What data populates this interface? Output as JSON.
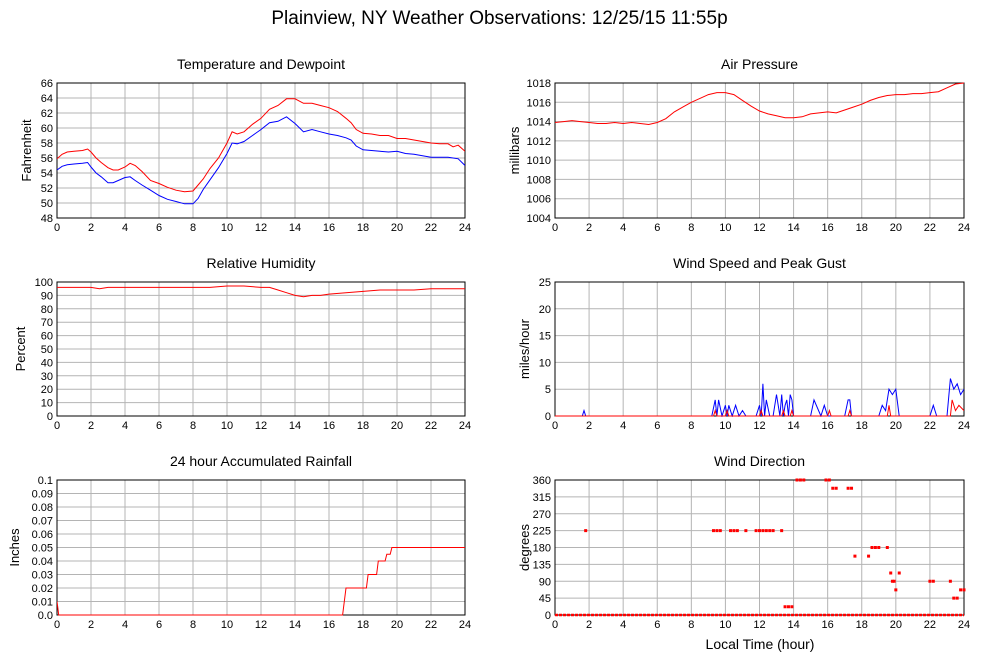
{
  "page": {
    "title": "Plainview, NY Weather Observations: 12/25/15 11:55p",
    "xlabel": "Local Time (hour)"
  },
  "colors": {
    "primary": "#ff0000",
    "secondary": "#0000ff",
    "grid": "#b4b4b4",
    "axis": "#000000"
  },
  "chart_data": [
    {
      "id": "temperature",
      "type": "line",
      "title": "Temperature and Dewpoint",
      "ylabel": "Fahrenheit",
      "xlim": [
        0,
        24
      ],
      "ylim": [
        48,
        66
      ],
      "xticks": [
        0,
        2,
        4,
        6,
        8,
        10,
        12,
        14,
        16,
        18,
        20,
        22,
        24
      ],
      "yticks": [
        48,
        50,
        52,
        54,
        56,
        58,
        60,
        62,
        64,
        66
      ],
      "series": [
        {
          "color": "#ff0000",
          "x": [
            0,
            0.3,
            0.6,
            1,
            1.5,
            1.8,
            2,
            2.3,
            2.6,
            3,
            3.3,
            3.6,
            4,
            4.3,
            4.6,
            5,
            5.5,
            6,
            6.5,
            7,
            7.5,
            8,
            8.3,
            8.6,
            9,
            9.5,
            10,
            10.3,
            10.6,
            11,
            11.5,
            12,
            12.5,
            13,
            13.5,
            14,
            14.5,
            15,
            15.5,
            16,
            16.5,
            17,
            17.3,
            17.6,
            18,
            18.5,
            19,
            19.5,
            20,
            20.5,
            21,
            21.5,
            22,
            22.5,
            23,
            23.3,
            23.6,
            24
          ],
          "y": [
            55.9,
            56.5,
            56.8,
            56.9,
            57.0,
            57.2,
            56.8,
            56.0,
            55.4,
            54.7,
            54.4,
            54.4,
            54.8,
            55.3,
            55.0,
            54.2,
            53.0,
            52.6,
            52.1,
            51.7,
            51.5,
            51.6,
            52.4,
            53.2,
            54.6,
            56.0,
            58.0,
            59.5,
            59.2,
            59.5,
            60.5,
            61.3,
            62.5,
            63.0,
            63.9,
            63.9,
            63.3,
            63.3,
            63.0,
            62.7,
            62.2,
            61.3,
            60.7,
            59.8,
            59.3,
            59.2,
            59.0,
            59.0,
            58.6,
            58.6,
            58.4,
            58.2,
            58.0,
            57.9,
            57.9,
            57.5,
            57.7,
            56.9
          ]
        },
        {
          "color": "#0000ff",
          "x": [
            0,
            0.3,
            0.6,
            1,
            1.5,
            1.8,
            2,
            2.3,
            2.6,
            3,
            3.3,
            3.6,
            4,
            4.3,
            4.6,
            5,
            5.5,
            6,
            6.5,
            7,
            7.5,
            8,
            8.3,
            8.6,
            9,
            9.5,
            10,
            10.3,
            10.6,
            11,
            11.5,
            12,
            12.5,
            13,
            13.5,
            14,
            14.5,
            15,
            15.5,
            16,
            16.5,
            17,
            17.3,
            17.6,
            18,
            18.5,
            19,
            19.5,
            20,
            20.5,
            21,
            21.5,
            22,
            22.5,
            23,
            23.3,
            23.6,
            24
          ],
          "y": [
            54.4,
            54.9,
            55.1,
            55.2,
            55.3,
            55.4,
            54.8,
            54.0,
            53.5,
            52.7,
            52.7,
            53.0,
            53.4,
            53.5,
            53.0,
            52.4,
            51.7,
            51.0,
            50.5,
            50.2,
            49.9,
            49.9,
            50.6,
            51.8,
            53.1,
            54.7,
            56.6,
            58.0,
            57.9,
            58.2,
            59.0,
            59.8,
            60.7,
            60.9,
            61.5,
            60.6,
            59.5,
            59.8,
            59.5,
            59.2,
            59.0,
            58.7,
            58.4,
            57.6,
            57.1,
            57.0,
            56.9,
            56.8,
            56.9,
            56.6,
            56.5,
            56.3,
            56.1,
            56.1,
            56.1,
            56.0,
            55.9,
            55.0
          ]
        }
      ]
    },
    {
      "id": "pressure",
      "type": "line",
      "title": "Air Pressure",
      "ylabel": "millibars",
      "xlim": [
        0,
        24
      ],
      "ylim": [
        1004,
        1018
      ],
      "xticks": [
        0,
        2,
        4,
        6,
        8,
        10,
        12,
        14,
        16,
        18,
        20,
        22,
        24
      ],
      "yticks": [
        1004,
        1006,
        1008,
        1010,
        1012,
        1014,
        1016,
        1018
      ],
      "series": [
        {
          "color": "#ff0000",
          "x": [
            0,
            0.5,
            1,
            1.5,
            2,
            2.5,
            3,
            3.5,
            4,
            4.5,
            5,
            5.5,
            6,
            6.5,
            7,
            7.5,
            8,
            8.5,
            9,
            9.5,
            10,
            10.5,
            11,
            11.5,
            12,
            12.5,
            13,
            13.5,
            14,
            14.5,
            15,
            15.5,
            16,
            16.5,
            17,
            17.5,
            18,
            18.5,
            19,
            19.5,
            20,
            20.5,
            21,
            21.5,
            22,
            22.5,
            23,
            23.5,
            24
          ],
          "y": [
            1013.9,
            1014.0,
            1014.1,
            1014.0,
            1013.9,
            1013.8,
            1013.8,
            1013.9,
            1013.8,
            1013.9,
            1013.8,
            1013.7,
            1013.9,
            1014.3,
            1015.0,
            1015.5,
            1016.0,
            1016.4,
            1016.8,
            1017.0,
            1017.0,
            1016.8,
            1016.2,
            1015.6,
            1015.1,
            1014.8,
            1014.6,
            1014.4,
            1014.4,
            1014.5,
            1014.8,
            1014.9,
            1015.0,
            1014.9,
            1015.2,
            1015.5,
            1015.8,
            1016.2,
            1016.5,
            1016.7,
            1016.8,
            1016.8,
            1016.9,
            1016.9,
            1017.0,
            1017.1,
            1017.5,
            1017.9,
            1018.0
          ]
        }
      ]
    },
    {
      "id": "humidity",
      "type": "line",
      "title": "Relative Humidity",
      "ylabel": "Percent",
      "xlim": [
        0,
        24
      ],
      "ylim": [
        0,
        100
      ],
      "xticks": [
        0,
        2,
        4,
        6,
        8,
        10,
        12,
        14,
        16,
        18,
        20,
        22,
        24
      ],
      "yticks": [
        0,
        10,
        20,
        30,
        40,
        50,
        60,
        70,
        80,
        90,
        100
      ],
      "series": [
        {
          "color": "#ff0000",
          "x": [
            0,
            1,
            2,
            2.5,
            3,
            4,
            5,
            6,
            7,
            8,
            9,
            10,
            11,
            12,
            12.5,
            13,
            13.5,
            14,
            14.5,
            15,
            15.5,
            16,
            17,
            18,
            19,
            20,
            21,
            22,
            23,
            24
          ],
          "y": [
            96,
            96,
            96,
            95,
            96,
            96,
            96,
            96,
            96,
            96,
            96,
            97,
            97,
            96,
            96,
            94,
            92,
            90,
            89,
            90,
            90,
            91,
            92,
            93,
            94,
            94,
            94,
            95,
            95,
            95
          ]
        }
      ]
    },
    {
      "id": "wind",
      "type": "line",
      "title": "Wind Speed and Peak Gust",
      "ylabel": "miles/hour",
      "xlim": [
        0,
        24
      ],
      "ylim": [
        0,
        25
      ],
      "xticks": [
        0,
        2,
        4,
        6,
        8,
        10,
        12,
        14,
        16,
        18,
        20,
        22,
        24
      ],
      "yticks": [
        0,
        5,
        10,
        15,
        20,
        25
      ],
      "series": [
        {
          "color": "#0000ff",
          "x": [
            0,
            1.6,
            1.7,
            1.8,
            9.0,
            9.2,
            9.4,
            9.5,
            9.6,
            9.8,
            10.0,
            10.1,
            10.2,
            10.4,
            10.6,
            10.8,
            11.0,
            11.2,
            11.4,
            11.6,
            11.8,
            12.0,
            12.1,
            12.2,
            12.3,
            12.4,
            12.6,
            12.8,
            13.0,
            13.2,
            13.3,
            13.4,
            13.5,
            13.6,
            13.7,
            13.8,
            13.9,
            14.0,
            14.1,
            14.3,
            15.0,
            15.2,
            15.6,
            15.8,
            16.0,
            16.2,
            16.4,
            17.0,
            17.2,
            17.3,
            17.4,
            17.6,
            18.0,
            18.5,
            19.0,
            19.2,
            19.4,
            19.6,
            19.8,
            20.0,
            20.2,
            20.3,
            21.0,
            22.0,
            22.2,
            22.4,
            22.6,
            23.0,
            23.2,
            23.4,
            23.6,
            23.8,
            24.0
          ],
          "y": [
            0,
            0,
            1,
            0,
            0,
            0,
            3,
            0,
            3,
            0,
            2,
            0,
            2,
            0,
            2,
            0,
            1,
            0,
            0,
            0,
            0,
            2,
            0,
            6,
            0,
            3,
            0,
            0,
            4,
            0,
            4,
            0,
            2,
            3,
            0,
            4,
            3,
            0,
            0,
            0,
            0,
            3,
            0,
            2,
            0,
            0,
            0,
            0,
            3,
            3,
            0,
            0,
            0,
            0,
            0,
            2,
            1,
            5,
            4,
            5,
            0,
            0,
            0,
            0,
            2,
            0,
            0,
            0,
            7,
            5,
            6,
            4,
            5
          ]
        },
        {
          "color": "#ff0000",
          "x": [
            0,
            9.3,
            9.4,
            9.5,
            10.0,
            10.1,
            10.2,
            12.0,
            12.1,
            12.2,
            13.3,
            13.4,
            13.5,
            13.8,
            13.9,
            14.0,
            16.0,
            16.1,
            16.2,
            17.2,
            17.3,
            17.4,
            19.5,
            19.6,
            19.7,
            23.2,
            23.3,
            23.5,
            23.7,
            24.0
          ],
          "y": [
            0,
            0,
            1,
            0,
            0,
            1,
            0,
            0,
            1,
            0,
            0,
            1,
            0,
            0,
            1,
            0,
            0,
            1,
            0,
            0,
            1,
            0,
            0,
            2,
            0,
            0,
            3,
            1,
            2,
            1
          ]
        }
      ]
    },
    {
      "id": "rainfall",
      "type": "line",
      "title": "24 hour Accumulated Rainfall",
      "ylabel": "Inches",
      "xlim": [
        0,
        24
      ],
      "ylim": [
        0,
        0.1
      ],
      "xticks": [
        0,
        2,
        4,
        6,
        8,
        10,
        12,
        14,
        16,
        18,
        20,
        22,
        24
      ],
      "yticks": [
        0.0,
        0.01,
        0.02,
        0.03,
        0.04,
        0.05,
        0.06,
        0.07,
        0.08,
        0.09,
        0.1
      ],
      "ytick_labels": [
        "0.0",
        "0.01",
        "0.02",
        "0.03",
        "0.04",
        "0.05",
        "0.06",
        "0.07",
        "0.08",
        "0.09",
        "0.1"
      ],
      "series": [
        {
          "color": "#ff0000",
          "x": [
            0,
            0.05,
            0.1,
            16.8,
            17.0,
            18.2,
            18.3,
            18.8,
            18.9,
            19.3,
            19.4,
            19.6,
            19.7,
            24
          ],
          "y": [
            0.01,
            0.005,
            0,
            0,
            0.02,
            0.02,
            0.03,
            0.03,
            0.04,
            0.04,
            0.045,
            0.045,
            0.05,
            0.05
          ]
        }
      ]
    },
    {
      "id": "direction",
      "type": "scatter",
      "title": "Wind Direction",
      "ylabel": "degrees",
      "xlim": [
        0,
        24
      ],
      "ylim": [
        0,
        360
      ],
      "xticks": [
        0,
        2,
        4,
        6,
        8,
        10,
        12,
        14,
        16,
        18,
        20,
        22,
        24
      ],
      "yticks": [
        0,
        45,
        90,
        135,
        180,
        225,
        270,
        315,
        360
      ],
      "series": [
        {
          "color": "#ff0000",
          "x": [
            1.8,
            9.3,
            9.5,
            9.7,
            10.3,
            10.5,
            10.7,
            11.2,
            11.8,
            12.0,
            12.2,
            12.4,
            12.6,
            12.8,
            13.3,
            13.5,
            13.7,
            13.9,
            14.2,
            14.4,
            14.6,
            15.9,
            16.1,
            16.3,
            16.5,
            17.2,
            17.4,
            17.6,
            18.4,
            18.6,
            18.8,
            19.0,
            19.5,
            19.7,
            19.8,
            19.9,
            20.0,
            20.2,
            22.0,
            22.2,
            23.2,
            23.4,
            23.6,
            23.8,
            24.0
          ],
          "y": [
            225,
            225,
            225,
            225,
            225,
            225,
            225,
            225,
            225,
            225,
            225,
            225,
            225,
            225,
            225,
            22,
            22,
            22,
            360,
            360,
            360,
            360,
            360,
            338,
            338,
            338,
            338,
            157,
            157,
            180,
            180,
            180,
            180,
            112,
            90,
            90,
            67,
            112,
            90,
            90,
            90,
            45,
            45,
            67,
            67
          ]
        }
      ],
      "baseline": {
        "y": 0,
        "x": [
          0,
          24
        ]
      }
    }
  ]
}
